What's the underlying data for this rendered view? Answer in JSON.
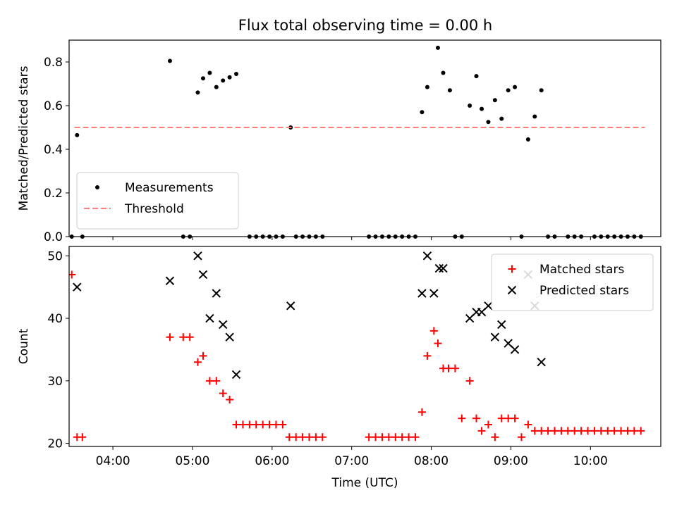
{
  "figure": {
    "title": "Flux total observing time = 0.00 h"
  },
  "chart_data": [
    {
      "type": "scatter",
      "ylabel": "Matched/Predicted stars",
      "xlabel": "",
      "xlim": [
        "03:27",
        "10:53"
      ],
      "ylim": [
        0,
        0.9
      ],
      "yticks": [
        0.0,
        0.2,
        0.4,
        0.6,
        0.8
      ],
      "ytick_labels": [
        "0.0",
        "0.2",
        "0.4",
        "0.6",
        "0.8"
      ],
      "xticks": [
        "04:00",
        "05:00",
        "06:00",
        "07:00",
        "08:00",
        "09:00",
        "10:00"
      ],
      "show_xtick_labels": false,
      "grid": false,
      "legend_position": "lower-left",
      "series": [
        {
          "name": "Measurements",
          "kind": "scatter",
          "marker": "dot",
          "color": "#000000",
          "x": [
            "03:33",
            "04:43",
            "05:04",
            "05:08",
            "05:13",
            "05:18",
            "05:23",
            "05:28",
            "05:33",
            "06:14",
            "07:53",
            "07:57",
            "08:05",
            "08:09",
            "08:14",
            "08:29",
            "08:34",
            "08:38",
            "08:43",
            "08:48",
            "08:53",
            "08:58",
            "09:03",
            "09:13",
            "09:18",
            "09:23"
          ],
          "y": [
            0.465,
            0.805,
            0.66,
            0.725,
            0.75,
            0.685,
            0.715,
            0.73,
            0.745,
            0.5,
            0.57,
            0.685,
            0.865,
            0.75,
            0.67,
            0.6,
            0.735,
            0.585,
            0.525,
            0.625,
            0.54,
            0.67,
            0.685,
            0.445,
            0.55,
            0.67
          ]
        },
        {
          "name": "",
          "kind": "scatter",
          "marker": "dot",
          "color": "#000000",
          "x": [
            "03:29",
            "03:37",
            "04:53",
            "04:58",
            "05:43",
            "05:48",
            "05:53",
            "05:58",
            "06:03",
            "06:08",
            "06:18",
            "06:23",
            "06:28",
            "06:33",
            "06:38",
            "07:13",
            "07:18",
            "07:23",
            "07:28",
            "07:33",
            "07:38",
            "07:43",
            "07:48",
            "08:18",
            "08:23",
            "09:08",
            "09:28",
            "09:33",
            "09:43",
            "09:48",
            "09:53",
            "10:03",
            "10:08",
            "10:13",
            "10:18",
            "10:23",
            "10:28",
            "10:33",
            "10:38"
          ],
          "y": [
            0,
            0,
            0,
            0,
            0,
            0,
            0,
            0,
            0,
            0,
            0,
            0,
            0,
            0,
            0,
            0,
            0,
            0,
            0,
            0,
            0,
            0,
            0,
            0,
            0,
            0,
            0,
            0,
            0,
            0,
            0,
            0,
            0,
            0,
            0,
            0,
            0,
            0,
            0
          ]
        },
        {
          "name": "Threshold",
          "kind": "hline",
          "dashed": true,
          "color": "#ff7f7f",
          "x": [
            "03:31",
            "10:41"
          ],
          "y": [
            0.5,
            0.5
          ]
        }
      ]
    },
    {
      "type": "scatter",
      "ylabel": "Count",
      "xlabel": "Time (UTC)",
      "xlim": [
        "03:27",
        "10:53"
      ],
      "ylim": [
        19.5,
        51.5
      ],
      "yticks": [
        20,
        30,
        40,
        50
      ],
      "ytick_labels": [
        "20",
        "30",
        "40",
        "50"
      ],
      "xticks": [
        "04:00",
        "05:00",
        "06:00",
        "07:00",
        "08:00",
        "09:00",
        "10:00"
      ],
      "show_xtick_labels": true,
      "grid": false,
      "legend_position": "upper-right",
      "series": [
        {
          "name": "Matched stars",
          "kind": "scatter",
          "marker": "plus",
          "color": "#ff0000",
          "x": [
            "03:29",
            "03:33",
            "03:37",
            "04:43",
            "04:53",
            "04:58",
            "05:04",
            "05:08",
            "05:13",
            "05:18",
            "05:23",
            "05:28",
            "05:33",
            "05:38",
            "05:43",
            "05:48",
            "05:53",
            "05:58",
            "06:03",
            "06:08",
            "06:13",
            "06:18",
            "06:23",
            "06:28",
            "06:33",
            "06:38",
            "07:13",
            "07:18",
            "07:23",
            "07:28",
            "07:33",
            "07:38",
            "07:43",
            "07:48",
            "07:53",
            "07:57",
            "08:02",
            "08:05",
            "08:09",
            "08:13",
            "08:18",
            "08:23",
            "08:29",
            "08:34",
            "08:38",
            "08:43",
            "08:48",
            "08:53",
            "08:58",
            "09:03",
            "09:08",
            "09:13",
            "09:18",
            "09:23",
            "09:28",
            "09:33",
            "09:38",
            "09:43",
            "09:48",
            "09:53",
            "09:58",
            "10:03",
            "10:08",
            "10:13",
            "10:18",
            "10:23",
            "10:28",
            "10:33",
            "10:38"
          ],
          "y": [
            47,
            21,
            21,
            37,
            37,
            37,
            33,
            34,
            30,
            30,
            28,
            27,
            23,
            23,
            23,
            23,
            23,
            23,
            23,
            23,
            21,
            21,
            21,
            21,
            21,
            21,
            21,
            21,
            21,
            21,
            21,
            21,
            21,
            21,
            25,
            34,
            38,
            36,
            32,
            32,
            32,
            24,
            30,
            24,
            22,
            23,
            21,
            24,
            24,
            24,
            21,
            23,
            22,
            22,
            22,
            22,
            22,
            22,
            22,
            22,
            22,
            22,
            22,
            22,
            22,
            22,
            22,
            22,
            22
          ]
        },
        {
          "name": "Predicted stars",
          "kind": "scatter",
          "marker": "x",
          "color": "#000000",
          "x": [
            "03:33",
            "04:43",
            "05:04",
            "05:08",
            "05:13",
            "05:18",
            "05:23",
            "05:28",
            "05:33",
            "06:14",
            "07:53",
            "07:57",
            "08:02",
            "08:06",
            "08:09",
            "08:29",
            "08:34",
            "08:38",
            "08:43",
            "08:48",
            "08:53",
            "08:58",
            "09:03",
            "09:13",
            "09:18",
            "09:23"
          ],
          "y": [
            45,
            46,
            50,
            47,
            40,
            44,
            39,
            37,
            31,
            42,
            44,
            50,
            44,
            48,
            48,
            40,
            41,
            41,
            42,
            37,
            39,
            36,
            35,
            47,
            42,
            33
          ]
        }
      ]
    }
  ]
}
